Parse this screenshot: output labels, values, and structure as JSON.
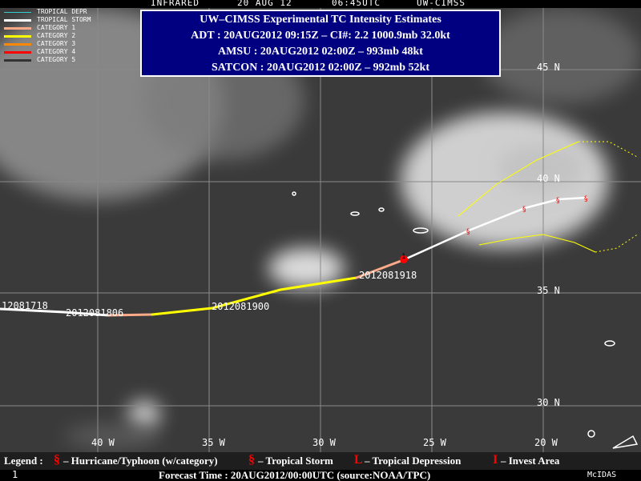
{
  "header": {
    "channel": "INFRARED",
    "date": "20 AUG 12",
    "time": "06:45UTC",
    "source": "UW-CIMSS"
  },
  "infobox": {
    "title": "UW–CIMSS Experimental TC Intensity Estimates",
    "adt": "ADT : 20AUG2012 09:15Z –  CI#: 2.2   1000.9mb   32.0kt",
    "amsu": "AMSU : 20AUG2012 02:00Z –  993mb   48kt",
    "satcon": "SATCON : 20AUG2012 02:00Z –  992mb   52kt"
  },
  "track_legend": [
    {
      "label": "TROPICAL DEPR",
      "color": "#33cccc"
    },
    {
      "label": "TROPICAL STORM",
      "color": "#ffffff"
    },
    {
      "label": "CATEGORY 1",
      "color": "#ffaa88"
    },
    {
      "label": "CATEGORY 2",
      "color": "#ffff00"
    },
    {
      "label": "CATEGORY 3",
      "color": "#ff8800"
    },
    {
      "label": "CATEGORY 4",
      "color": "#ff0000"
    },
    {
      "label": "CATEGORY 5",
      "color": "#333333"
    }
  ],
  "latitudes": [
    "45 N",
    "40 N",
    "35 N",
    "30 N"
  ],
  "longitudes": [
    "40 W",
    "35 W",
    "30 W",
    "25 W",
    "20 W"
  ],
  "track_labels": [
    "12081718",
    "2012081806",
    "2012081900",
    "2012081918"
  ],
  "current_category": "1",
  "legend": {
    "prefix": "Legend :",
    "hurricane": "– Hurricane/Typhoon (w/category)",
    "storm": "– Tropical Storm",
    "depression": "– Tropical Depression",
    "invest": "– Invest Area",
    "depression_symbol": "L",
    "invest_symbol": "I"
  },
  "footer": {
    "frame": "1",
    "forecast": "Forecast Time : 20AUG2012/00:00UTC (source:NOAA/TPC)",
    "brand": "McIDAS"
  }
}
